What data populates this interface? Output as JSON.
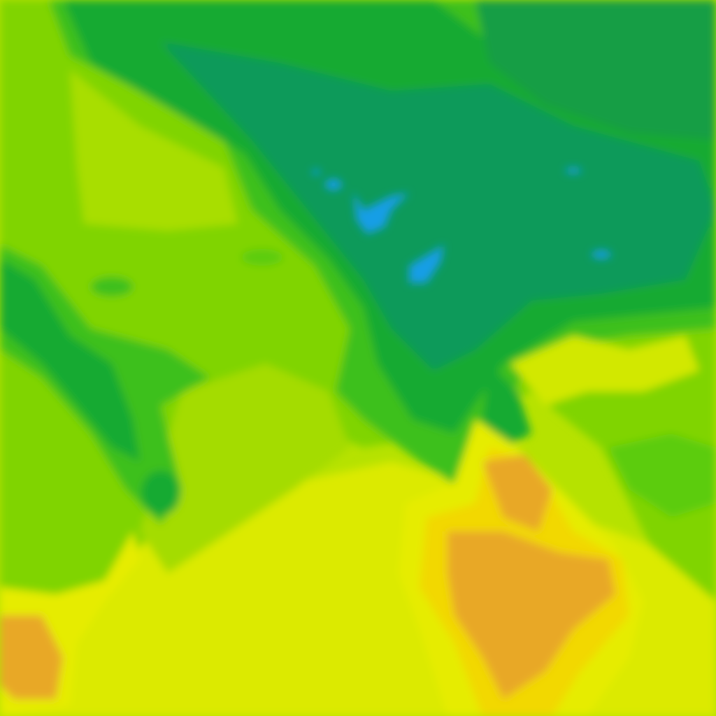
{
  "map": {
    "type": "contour-field-tile",
    "palette": {
      "blue": "#139ee6",
      "teal": "#0f9a5a",
      "dark_green": "#14a832",
      "green": "#3cc01a",
      "light_green": "#7ed400",
      "yellow_green": "#b6e200",
      "yellow": "#e2ec00",
      "gold": "#f2d800",
      "orange": "#e8a828",
      "red": "#e05030"
    }
  }
}
